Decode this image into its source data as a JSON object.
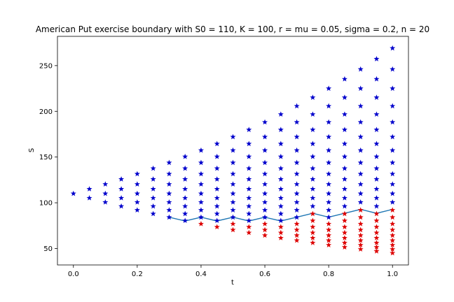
{
  "chart_data": {
    "type": "scatter",
    "title": "American Put exercise boundary with S0 = 110, K = 100, r = mu = 0.05, sigma = 0.2, n = 20",
    "xlabel": "t",
    "ylabel": "S",
    "xlim": [
      -0.05,
      1.05
    ],
    "ylim": [
      32,
      282
    ],
    "xticks": [
      0.0,
      0.2,
      0.4,
      0.6,
      0.8,
      1.0
    ],
    "xtick_labels": [
      "0.0",
      "0.2",
      "0.4",
      "0.6",
      "0.8",
      "1.0"
    ],
    "yticks": [
      50,
      100,
      150,
      200,
      250
    ],
    "ytick_labels": [
      "50",
      "100",
      "150",
      "200",
      "250"
    ],
    "grid": false,
    "model": {
      "S0": 110,
      "K": 100,
      "sigma": 0.2,
      "n": 20,
      "T": 1.0
    },
    "series": [
      {
        "role": "continuation",
        "marker": "star",
        "color": "#0000cc"
      },
      {
        "role": "exercise",
        "marker": "star",
        "color": "#dd0000"
      },
      {
        "role": "boundary",
        "marker": "line",
        "color": "#1f77b4",
        "x": [
          0.3,
          0.35,
          0.4,
          0.45,
          0.5,
          0.55,
          0.6,
          0.65,
          0.7,
          0.75,
          0.8,
          0.85,
          0.9,
          0.95,
          1.0
        ],
        "values": [
          84.2,
          80.1,
          84.2,
          80.1,
          84.2,
          80.1,
          84.2,
          80.1,
          84.2,
          88.5,
          84.2,
          88.5,
          92.8,
          88.5,
          92.8
        ]
      }
    ]
  }
}
